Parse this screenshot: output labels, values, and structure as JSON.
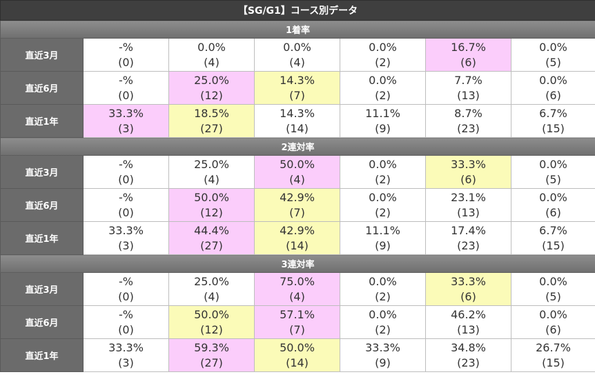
{
  "title": "【SG/G1】コース別データ",
  "colors": {
    "highlight_first": "#fbcdfb",
    "highlight_second": "#fbfbb8",
    "label_bg": "#6b6b6b",
    "header_bg": "#3f3f3f"
  },
  "sections": [
    {
      "label": "1着率",
      "rows": [
        {
          "label": "直近3月",
          "cells": [
            {
              "pct": "-%",
              "cnt": "(0)",
              "hl": ""
            },
            {
              "pct": "0.0%",
              "cnt": "(4)",
              "hl": ""
            },
            {
              "pct": "0.0%",
              "cnt": "(4)",
              "hl": ""
            },
            {
              "pct": "0.0%",
              "cnt": "(2)",
              "hl": ""
            },
            {
              "pct": "16.7%",
              "cnt": "(6)",
              "hl": "pink"
            },
            {
              "pct": "0.0%",
              "cnt": "(5)",
              "hl": ""
            }
          ]
        },
        {
          "label": "直近6月",
          "cells": [
            {
              "pct": "-%",
              "cnt": "(0)",
              "hl": ""
            },
            {
              "pct": "25.0%",
              "cnt": "(12)",
              "hl": "pink"
            },
            {
              "pct": "14.3%",
              "cnt": "(7)",
              "hl": "yellow"
            },
            {
              "pct": "0.0%",
              "cnt": "(2)",
              "hl": ""
            },
            {
              "pct": "7.7%",
              "cnt": "(13)",
              "hl": ""
            },
            {
              "pct": "0.0%",
              "cnt": "(6)",
              "hl": ""
            }
          ]
        },
        {
          "label": "直近1年",
          "cells": [
            {
              "pct": "33.3%",
              "cnt": "(3)",
              "hl": "pink"
            },
            {
              "pct": "18.5%",
              "cnt": "(27)",
              "hl": "yellow"
            },
            {
              "pct": "14.3%",
              "cnt": "(14)",
              "hl": ""
            },
            {
              "pct": "11.1%",
              "cnt": "(9)",
              "hl": ""
            },
            {
              "pct": "8.7%",
              "cnt": "(23)",
              "hl": ""
            },
            {
              "pct": "6.7%",
              "cnt": "(15)",
              "hl": ""
            }
          ]
        }
      ]
    },
    {
      "label": "2連対率",
      "rows": [
        {
          "label": "直近3月",
          "cells": [
            {
              "pct": "-%",
              "cnt": "(0)",
              "hl": ""
            },
            {
              "pct": "25.0%",
              "cnt": "(4)",
              "hl": ""
            },
            {
              "pct": "50.0%",
              "cnt": "(4)",
              "hl": "pink"
            },
            {
              "pct": "0.0%",
              "cnt": "(2)",
              "hl": ""
            },
            {
              "pct": "33.3%",
              "cnt": "(6)",
              "hl": "yellow"
            },
            {
              "pct": "0.0%",
              "cnt": "(5)",
              "hl": ""
            }
          ]
        },
        {
          "label": "直近6月",
          "cells": [
            {
              "pct": "-%",
              "cnt": "(0)",
              "hl": ""
            },
            {
              "pct": "50.0%",
              "cnt": "(12)",
              "hl": "pink"
            },
            {
              "pct": "42.9%",
              "cnt": "(7)",
              "hl": "yellow"
            },
            {
              "pct": "0.0%",
              "cnt": "(2)",
              "hl": ""
            },
            {
              "pct": "23.1%",
              "cnt": "(13)",
              "hl": ""
            },
            {
              "pct": "0.0%",
              "cnt": "(6)",
              "hl": ""
            }
          ]
        },
        {
          "label": "直近1年",
          "cells": [
            {
              "pct": "33.3%",
              "cnt": "(3)",
              "hl": ""
            },
            {
              "pct": "44.4%",
              "cnt": "(27)",
              "hl": "pink"
            },
            {
              "pct": "42.9%",
              "cnt": "(14)",
              "hl": "yellow"
            },
            {
              "pct": "11.1%",
              "cnt": "(9)",
              "hl": ""
            },
            {
              "pct": "17.4%",
              "cnt": "(23)",
              "hl": ""
            },
            {
              "pct": "6.7%",
              "cnt": "(15)",
              "hl": ""
            }
          ]
        }
      ]
    },
    {
      "label": "3連対率",
      "rows": [
        {
          "label": "直近3月",
          "cells": [
            {
              "pct": "-%",
              "cnt": "(0)",
              "hl": ""
            },
            {
              "pct": "25.0%",
              "cnt": "(4)",
              "hl": ""
            },
            {
              "pct": "75.0%",
              "cnt": "(4)",
              "hl": "pink"
            },
            {
              "pct": "0.0%",
              "cnt": "(2)",
              "hl": ""
            },
            {
              "pct": "33.3%",
              "cnt": "(6)",
              "hl": "yellow"
            },
            {
              "pct": "0.0%",
              "cnt": "(5)",
              "hl": ""
            }
          ]
        },
        {
          "label": "直近6月",
          "cells": [
            {
              "pct": "-%",
              "cnt": "(0)",
              "hl": ""
            },
            {
              "pct": "50.0%",
              "cnt": "(12)",
              "hl": "yellow"
            },
            {
              "pct": "57.1%",
              "cnt": "(7)",
              "hl": "pink"
            },
            {
              "pct": "0.0%",
              "cnt": "(2)",
              "hl": ""
            },
            {
              "pct": "46.2%",
              "cnt": "(13)",
              "hl": ""
            },
            {
              "pct": "0.0%",
              "cnt": "(6)",
              "hl": ""
            }
          ]
        },
        {
          "label": "直近1年",
          "cells": [
            {
              "pct": "33.3%",
              "cnt": "(3)",
              "hl": ""
            },
            {
              "pct": "59.3%",
              "cnt": "(27)",
              "hl": "pink"
            },
            {
              "pct": "50.0%",
              "cnt": "(14)",
              "hl": "yellow"
            },
            {
              "pct": "33.3%",
              "cnt": "(9)",
              "hl": ""
            },
            {
              "pct": "34.8%",
              "cnt": "(23)",
              "hl": ""
            },
            {
              "pct": "26.7%",
              "cnt": "(15)",
              "hl": ""
            }
          ]
        }
      ]
    }
  ]
}
